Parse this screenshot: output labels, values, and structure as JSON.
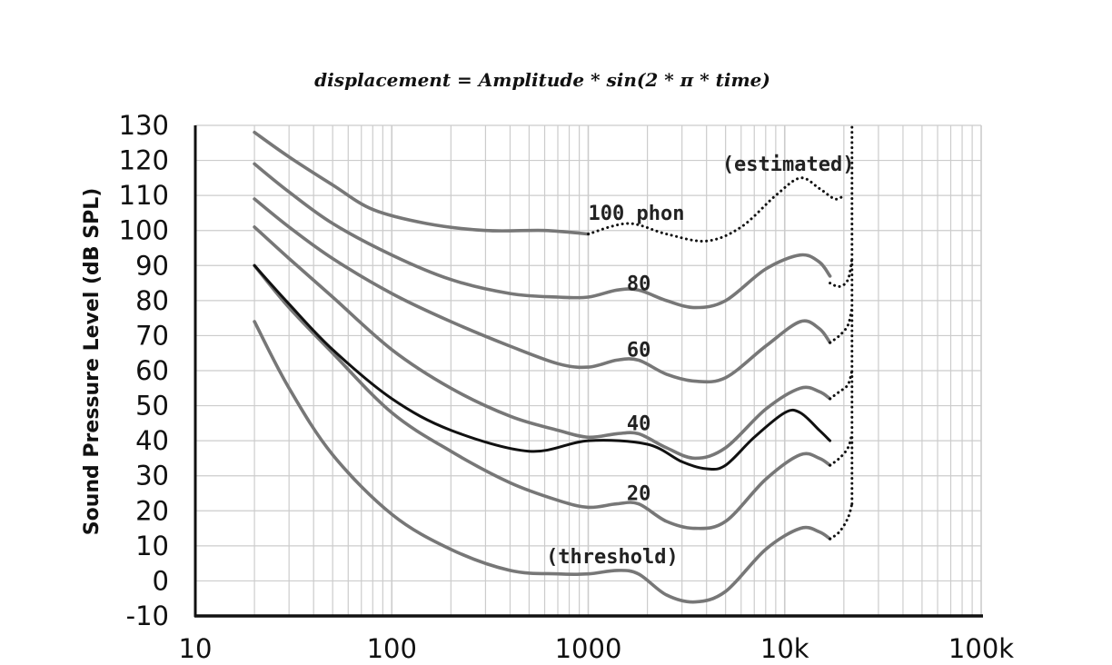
{
  "chart_data": {
    "type": "line",
    "title": "displacement = Amplitude * sin(2 * π * time)",
    "ylabel": "Sound Pressure Level (dB SPL)",
    "xlabel": "",
    "x_scale": "log",
    "xlim": [
      10,
      100000
    ],
    "ylim": [
      -10,
      130
    ],
    "x_ticks": [
      10,
      100,
      1000,
      10000,
      100000
    ],
    "x_tick_labels": [
      "10",
      "100",
      "1000",
      "10k",
      "100k"
    ],
    "y_ticks": [
      -10,
      0,
      10,
      20,
      30,
      40,
      50,
      60,
      70,
      80,
      90,
      100,
      110,
      120,
      130
    ],
    "grid": true,
    "colors": {
      "contour": "#777777",
      "highlight": "#111111",
      "dotted": "#111111",
      "axis": "#111111",
      "grid": "#cccccc"
    },
    "annotations": [
      {
        "text": "(estimated)",
        "x": 4800,
        "y": 117
      },
      {
        "text": "100 phon",
        "x": 1000,
        "y": 103
      },
      {
        "text": "80",
        "x": 1570,
        "y": 83
      },
      {
        "text": "60",
        "x": 1570,
        "y": 64
      },
      {
        "text": "40",
        "x": 1570,
        "y": 43
      },
      {
        "text": "20",
        "x": 1570,
        "y": 23
      },
      {
        "text": "(threshold)",
        "x": 610,
        "y": 5
      }
    ],
    "series": [
      {
        "style": "solid",
        "color": "contour",
        "x": [
          20,
          30,
          50,
          80,
          150,
          300,
          600,
          1000
        ],
        "y": [
          128,
          121,
          113,
          106,
          102,
          100,
          100,
          99
        ]
      },
      {
        "style": "dotted",
        "color": "dotted",
        "x": [
          1000,
          1600,
          2500,
          4000,
          6000,
          9000,
          12000,
          15000,
          18000,
          20000
        ],
        "y": [
          99,
          102,
          99,
          97,
          101,
          110,
          115,
          112,
          109,
          110
        ]
      },
      {
        "style": "solid",
        "color": "contour",
        "x": [
          20,
          30,
          50,
          100,
          200,
          400,
          700,
          1000,
          1400,
          1800,
          2500,
          3500,
          5000,
          8000,
          12000,
          15000,
          17000
        ],
        "y": [
          119,
          111,
          102,
          93,
          86,
          82,
          81,
          81,
          83,
          83,
          80,
          78,
          80,
          89,
          93,
          91,
          87
        ]
      },
      {
        "style": "dotted",
        "color": "dotted",
        "x": [
          17000,
          19000,
          21000,
          22000
        ],
        "y": [
          85,
          84,
          86,
          92
        ]
      },
      {
        "style": "solid",
        "color": "contour",
        "x": [
          20,
          30,
          50,
          100,
          200,
          400,
          700,
          1000,
          1400,
          1800,
          2500,
          3500,
          5000,
          8000,
          12000,
          15000,
          17000
        ],
        "y": [
          109,
          101,
          92,
          82,
          74,
          67,
          62,
          61,
          63,
          63,
          59,
          57,
          58,
          67,
          74,
          72,
          68
        ]
      },
      {
        "style": "dotted",
        "color": "dotted",
        "x": [
          17000,
          19000,
          21000,
          22000
        ],
        "y": [
          68,
          70,
          73,
          78
        ]
      },
      {
        "style": "solid",
        "color": "contour",
        "x": [
          20,
          30,
          50,
          100,
          200,
          400,
          700,
          1000,
          1400,
          1800,
          2500,
          3500,
          5000,
          8000,
          12000,
          15000,
          17000
        ],
        "y": [
          101,
          92,
          81,
          66,
          55,
          47,
          43,
          41,
          42,
          42,
          38,
          35,
          38,
          49,
          55,
          54,
          52
        ]
      },
      {
        "style": "dotted",
        "color": "dotted",
        "x": [
          17000,
          19000,
          21000,
          22000
        ],
        "y": [
          52,
          54,
          56,
          60
        ]
      },
      {
        "style": "solid",
        "color": "contour",
        "x": [
          20,
          30,
          50,
          100,
          200,
          400,
          700,
          1000,
          1400,
          1800,
          2500,
          3500,
          5000,
          8000,
          12000,
          15000,
          17000
        ],
        "y": [
          90,
          78,
          65,
          48,
          37,
          28,
          23,
          21,
          22,
          22,
          17,
          15,
          17,
          29,
          36,
          35,
          33
        ]
      },
      {
        "style": "dotted",
        "color": "dotted",
        "x": [
          17000,
          19000,
          21000,
          22000
        ],
        "y": [
          33,
          35,
          38,
          42
        ]
      },
      {
        "style": "solid",
        "color": "contour",
        "x": [
          20,
          30,
          50,
          100,
          200,
          400,
          700,
          1000,
          1400,
          1800,
          2500,
          3500,
          5000,
          8000,
          12000,
          15000,
          17000
        ],
        "y": [
          74,
          55,
          36,
          19,
          9,
          3,
          2,
          2,
          3,
          2,
          -4,
          -6,
          -3,
          9,
          15,
          14,
          12
        ]
      },
      {
        "style": "dotted",
        "color": "dotted",
        "x": [
          17000,
          19000,
          21000,
          22000
        ],
        "y": [
          12,
          14,
          18,
          22
        ]
      },
      {
        "style": "dotted",
        "color": "dotted",
        "x": [
          22000,
          22000
        ],
        "y": [
          22,
          130
        ]
      },
      {
        "style": "solid",
        "color": "highlight",
        "x": [
          20,
          30,
          50,
          100,
          200,
          500,
          1000,
          2000,
          3000,
          4000,
          5000,
          7000,
          10000,
          12000,
          15000,
          17000
        ],
        "y": [
          90,
          79,
          66,
          52,
          43,
          37,
          40,
          39,
          34,
          32,
          33,
          41,
          48,
          48,
          43,
          40
        ]
      }
    ]
  }
}
